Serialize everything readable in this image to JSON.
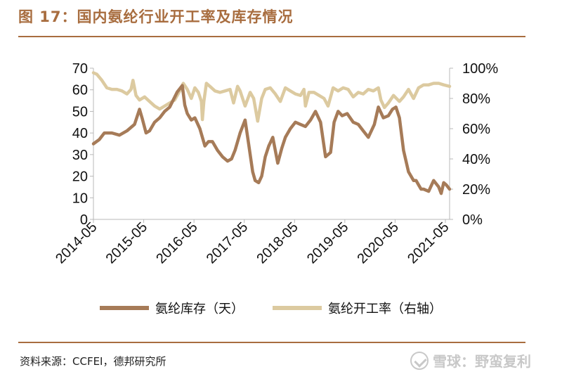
{
  "figure": {
    "title": "图 17：国内氨纶行业开工率及库存情况",
    "source": "资料来源：CCFEI，德邦研究所",
    "watermark": "雪球：野蛮复利"
  },
  "colors": {
    "accent": "#a86d3f",
    "inventory": "#a67b58",
    "utilization": "#dccaa0"
  },
  "chart_data": {
    "type": "line",
    "title": "",
    "xlabel": "",
    "ylabel_left": "",
    "ylabel_right": "",
    "x_tick_labels": [
      "2014-05",
      "2015-05",
      "2016-05",
      "2017-05",
      "2018-05",
      "2019-05",
      "2020-05",
      "2021-05"
    ],
    "y_left": {
      "min": 0,
      "max": 70,
      "ticks": [
        0,
        10,
        20,
        30,
        40,
        50,
        60,
        70
      ],
      "tick_labels": [
        "0",
        "10",
        "20",
        "30",
        "40",
        "50",
        "60",
        "70"
      ]
    },
    "y_right": {
      "min": 0,
      "max": 100,
      "ticks": [
        0,
        20,
        40,
        60,
        80,
        100
      ],
      "tick_labels": [
        "0%",
        "20%",
        "40%",
        "60%",
        "80%",
        "100%"
      ]
    },
    "x_range": [
      2014.333,
      2021.417
    ],
    "grid": false,
    "legend_position": "bottom",
    "series": [
      {
        "name": "氨纶库存（天）",
        "axis": "left",
        "x": [
          2014.333,
          2014.45,
          2014.55,
          2014.7,
          2014.85,
          2015.0,
          2015.15,
          2015.25,
          2015.3,
          2015.38,
          2015.45,
          2015.55,
          2015.65,
          2015.75,
          2015.85,
          2016.0,
          2016.1,
          2016.15,
          2016.2,
          2016.28,
          2016.35,
          2016.45,
          2016.55,
          2016.62,
          2016.7,
          2016.8,
          2016.9,
          2017.0,
          2017.08,
          2017.15,
          2017.25,
          2017.35,
          2017.42,
          2017.5,
          2017.55,
          2017.62,
          2017.68,
          2017.75,
          2017.82,
          2017.9,
          2018.0,
          2018.08,
          2018.15,
          2018.25,
          2018.35,
          2018.45,
          2018.55,
          2018.65,
          2018.75,
          2018.85,
          2018.95,
          2019.05,
          2019.12,
          2019.2,
          2019.28,
          2019.38,
          2019.5,
          2019.6,
          2019.7,
          2019.8,
          2019.92,
          2020.0,
          2020.1,
          2020.2,
          2020.28,
          2020.35,
          2020.42,
          2020.5,
          2020.6,
          2020.7,
          2020.75,
          2020.8,
          2020.85,
          2020.9,
          2021.0,
          2021.1,
          2021.2,
          2021.25,
          2021.3,
          2021.35,
          2021.417
        ],
        "values": [
          35,
          37,
          40,
          40,
          39,
          41,
          44,
          51,
          47,
          40,
          41,
          45,
          47,
          50,
          52,
          59,
          62,
          53,
          49,
          46,
          47,
          42,
          34,
          36,
          36,
          32,
          29,
          27,
          28,
          32,
          40,
          46,
          35,
          22,
          18,
          17,
          20,
          29,
          34,
          38,
          26,
          33,
          38,
          42,
          45,
          44,
          43,
          46,
          50,
          45,
          29,
          31,
          45,
          50,
          48,
          49,
          45,
          44,
          41,
          38,
          44,
          52,
          47,
          48,
          51,
          52,
          47,
          32,
          22,
          18,
          18,
          16,
          14,
          14,
          13,
          18,
          15,
          12,
          17,
          16,
          14
        ]
      },
      {
        "name": "氨纶开工率（右轴）",
        "axis": "right",
        "x": [
          2014.333,
          2014.4,
          2014.5,
          2014.6,
          2014.7,
          2014.8,
          2014.9,
          2015.0,
          2015.08,
          2015.12,
          2015.18,
          2015.25,
          2015.35,
          2015.45,
          2015.55,
          2015.65,
          2015.75,
          2015.85,
          2015.95,
          2016.05,
          2016.12,
          2016.2,
          2016.28,
          2016.35,
          2016.42,
          2016.48,
          2016.5,
          2016.53,
          2016.58,
          2016.65,
          2016.75,
          2016.85,
          2016.95,
          2017.05,
          2017.12,
          2017.2,
          2017.25,
          2017.35,
          2017.45,
          2017.52,
          2017.6,
          2017.68,
          2017.75,
          2017.85,
          2017.95,
          2018.05,
          2018.15,
          2018.25,
          2018.35,
          2018.45,
          2018.52,
          2018.55,
          2018.62,
          2018.72,
          2018.82,
          2018.92,
          2019.0,
          2019.1,
          2019.2,
          2019.3,
          2019.4,
          2019.5,
          2019.6,
          2019.7,
          2019.8,
          2019.9,
          2020.0,
          2020.05,
          2020.12,
          2020.2,
          2020.3,
          2020.42,
          2020.5,
          2020.6,
          2020.7,
          2020.8,
          2020.9,
          2021.0,
          2021.1,
          2021.2,
          2021.3,
          2021.417
        ],
        "values": [
          97,
          96,
          92,
          87,
          86,
          86,
          85,
          83,
          86,
          92,
          82,
          79,
          81,
          78,
          75,
          73,
          75,
          77,
          79,
          85,
          90,
          86,
          80,
          87,
          84,
          78,
          66,
          78,
          90,
          88,
          85,
          84,
          85,
          86,
          77,
          88,
          85,
          75,
          84,
          80,
          65,
          80,
          86,
          87,
          83,
          78,
          87,
          85,
          83,
          82,
          86,
          75,
          84,
          84,
          82,
          80,
          75,
          87,
          85,
          87,
          86,
          81,
          84,
          83,
          86,
          85,
          87,
          79,
          74,
          77,
          82,
          78,
          81,
          86,
          80,
          87,
          89,
          89,
          90,
          90,
          89,
          88
        ]
      }
    ]
  }
}
